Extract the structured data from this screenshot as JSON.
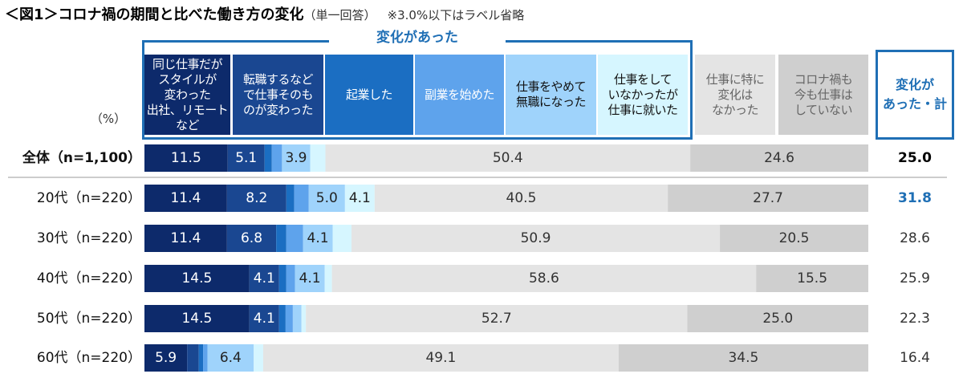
{
  "chart_data": {
    "type": "stacked_bar_horizontal",
    "title": "＜図1＞コロナ禍の期間と比べた働き方の変化",
    "subtitle": "（単一回答）",
    "note": "※3.0%以下はラベル省略",
    "unit_label": "（%）",
    "group_label": "変化があった",
    "xlim": [
      0,
      100
    ],
    "categories": [
      "全体（n=1,100）",
      "20代（n=220）",
      "30代（n=220）",
      "40代（n=220）",
      "50代（n=220）",
      "60代（n=220）"
    ],
    "series": [
      {
        "name": "同じ仕事だが\nスタイルが\n変わった\n出社、リモートなど",
        "color": "#0d2a6b",
        "label_color": "#ffffff",
        "values": [
          11.5,
          11.4,
          11.4,
          14.5,
          14.5,
          5.9
        ],
        "value_labels": [
          "11.5",
          "11.4",
          "11.4",
          "14.5",
          "14.5",
          "5.9"
        ]
      },
      {
        "name": "転職するなど\nで仕事そのも\nのが変わった",
        "color": "#1a4791",
        "label_color": "#ffffff",
        "values": [
          5.1,
          8.2,
          6.8,
          4.1,
          4.1,
          1.6
        ],
        "value_labels": [
          "5.1",
          "8.2",
          "6.8",
          "4.1",
          "4.1",
          null
        ]
      },
      {
        "name": "起業した",
        "color": "#1b6ec2",
        "label_color": "#ffffff",
        "values": [
          1.0,
          1.1,
          1.4,
          1.0,
          0.9,
          0.6
        ],
        "value_labels": [
          null,
          null,
          null,
          null,
          null,
          null
        ]
      },
      {
        "name": "副業を始めた",
        "color": "#5ea3ec",
        "label_color": "#ffffff",
        "values": [
          1.4,
          2.0,
          2.3,
          1.2,
          1.0,
          0.6
        ],
        "value_labels": [
          null,
          null,
          null,
          null,
          null,
          null
        ]
      },
      {
        "name": "仕事をやめて\n無職になった",
        "color": "#9fd3fb",
        "label_color": "#222222",
        "values": [
          3.9,
          5.0,
          4.1,
          4.1,
          1.2,
          6.4
        ],
        "value_labels": [
          "3.9",
          "5.0",
          "4.1",
          "4.1",
          null,
          "6.4"
        ]
      },
      {
        "name": "仕事をして\nいなかったが\n仕事に就いた",
        "color": "#d6f6ff",
        "label_color": "#222222",
        "values": [
          2.1,
          4.1,
          2.6,
          1.0,
          0.6,
          1.3
        ],
        "value_labels": [
          null,
          "4.1",
          null,
          null,
          null,
          null
        ]
      },
      {
        "name": "仕事に特に\n変化は\nなかった",
        "color": "#e4e4e4",
        "label_color": "#333333",
        "values": [
          50.4,
          40.5,
          50.9,
          58.6,
          52.7,
          49.1
        ],
        "value_labels": [
          "50.4",
          "40.5",
          "50.9",
          "58.6",
          "52.7",
          "49.1"
        ]
      },
      {
        "name": "コロナ禍も\n今も仕事は\nしていない",
        "color": "#cfcfcf",
        "label_color": "#333333",
        "values": [
          24.6,
          27.7,
          20.5,
          15.5,
          25.0,
          34.5
        ],
        "value_labels": [
          "24.6",
          "27.7",
          "20.5",
          "15.5",
          "25.0",
          "34.5"
        ]
      }
    ],
    "totals": {
      "name": "変化が\nあった・計",
      "values": [
        25.0,
        31.8,
        28.6,
        25.9,
        22.3,
        16.4
      ],
      "value_labels": [
        "25.0",
        "31.8",
        "28.6",
        "25.9",
        "22.3",
        "16.4"
      ],
      "colors": [
        "#000000",
        "#1f6fb5",
        "#333333",
        "#333333",
        "#333333",
        "#333333"
      ],
      "bold": [
        true,
        true,
        false,
        false,
        false,
        false
      ]
    }
  }
}
